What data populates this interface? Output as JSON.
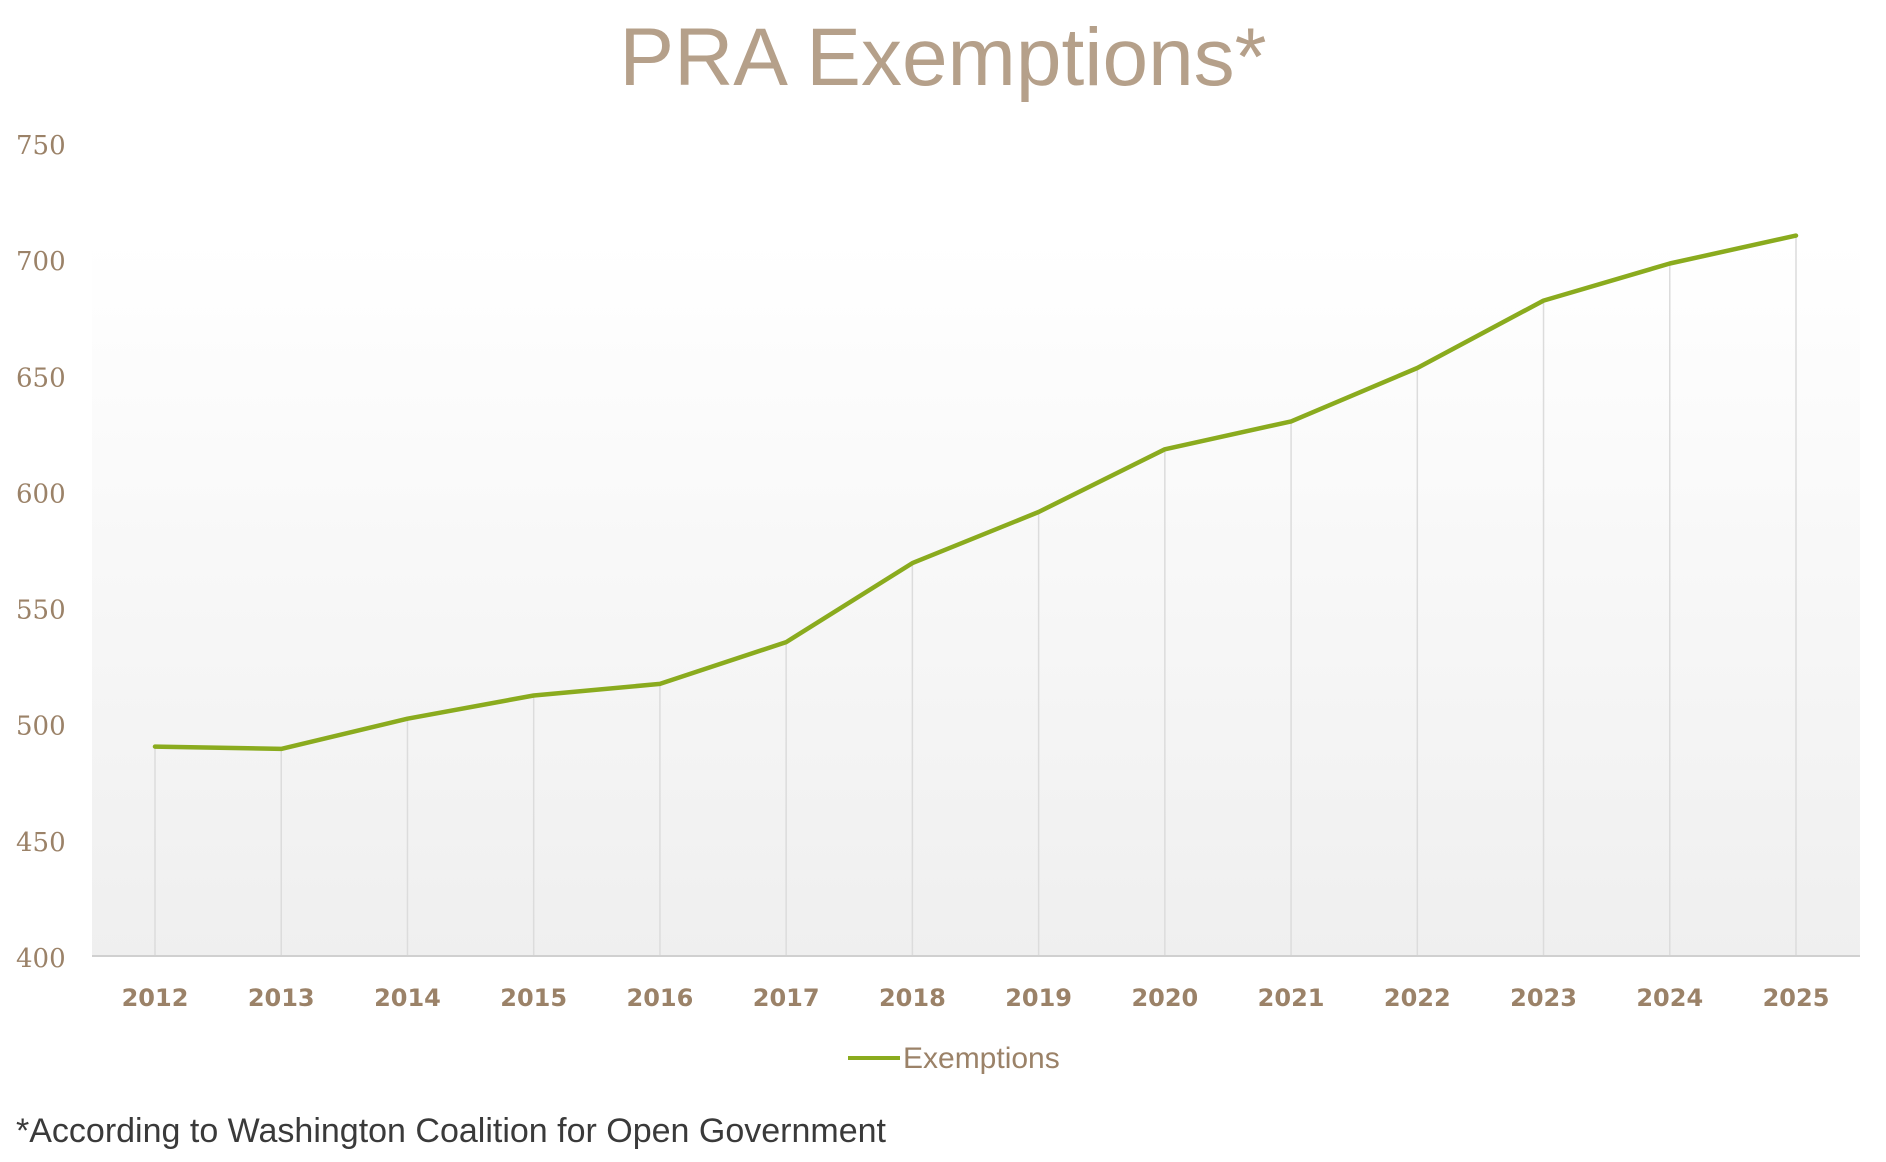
{
  "colors": {
    "line": "#8aab1e",
    "text": "#9b8268",
    "title": "#b5a08a",
    "gridline": "#dcdcdc",
    "axis": "#d0d0d0"
  },
  "chart_data": {
    "type": "line",
    "title": "PRA Exemptions*",
    "xlabel": "",
    "ylabel": "",
    "categories": [
      "2012",
      "2013",
      "2014",
      "2015",
      "2016",
      "2017",
      "2018",
      "2019",
      "2020",
      "2021",
      "2022",
      "2023",
      "2024",
      "2025"
    ],
    "series": [
      {
        "name": "Exemptions",
        "values": [
          491,
          490,
          503,
          513,
          518,
          536,
          570,
          592,
          619,
          631,
          654,
          683,
          699,
          711
        ]
      }
    ],
    "ylim": [
      400,
      750
    ],
    "yticks": [
      "400",
      "450",
      "500",
      "550",
      "600",
      "650",
      "700",
      "750"
    ],
    "grid": "vertical",
    "legend_position": "bottom"
  },
  "footnote": "*According to Washington Coalition for Open Government"
}
